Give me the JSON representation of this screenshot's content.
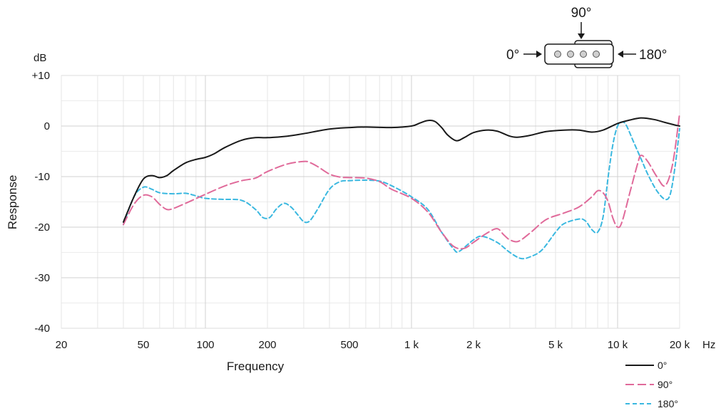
{
  "chart_data": {
    "type": "line",
    "xscale": "log",
    "xlabel": "Frequency",
    "ylabel": "Response",
    "x_unit": "Hz",
    "y_unit": "dB",
    "xlim": [
      20,
      20000
    ],
    "ylim": [
      -40,
      10
    ],
    "x_ticks": [
      {
        "value": 20,
        "label": "20"
      },
      {
        "value": 50,
        "label": "50"
      },
      {
        "value": 100,
        "label": "100"
      },
      {
        "value": 200,
        "label": "200"
      },
      {
        "value": 500,
        "label": "500"
      },
      {
        "value": 1000,
        "label": "1 k"
      },
      {
        "value": 2000,
        "label": "2 k"
      },
      {
        "value": 5000,
        "label": "5 k"
      },
      {
        "value": 10000,
        "label": "10 k"
      },
      {
        "value": 20000,
        "label": "20 k"
      }
    ],
    "y_ticks": [
      {
        "value": 10,
        "label": "+10"
      },
      {
        "value": 0,
        "label": "0"
      },
      {
        "value": -10,
        "label": "-10"
      },
      {
        "value": -20,
        "label": "-20"
      },
      {
        "value": -30,
        "label": "-30"
      },
      {
        "value": -40,
        "label": "-40"
      }
    ],
    "grid": true,
    "legend_position": "bottom-right",
    "series": [
      {
        "name": "0°",
        "color": "#1a1a1a",
        "dash": "solid",
        "points": [
          [
            40,
            -19
          ],
          [
            45,
            -14
          ],
          [
            50,
            -10.5
          ],
          [
            55,
            -9.8
          ],
          [
            60,
            -10.2
          ],
          [
            65,
            -9.8
          ],
          [
            70,
            -8.8
          ],
          [
            80,
            -7.3
          ],
          [
            90,
            -6.6
          ],
          [
            100,
            -6.2
          ],
          [
            110,
            -5.5
          ],
          [
            125,
            -4.2
          ],
          [
            150,
            -2.8
          ],
          [
            175,
            -2.3
          ],
          [
            200,
            -2.3
          ],
          [
            250,
            -2
          ],
          [
            300,
            -1.5
          ],
          [
            400,
            -0.6
          ],
          [
            500,
            -0.3
          ],
          [
            600,
            -0.2
          ],
          [
            800,
            -0.3
          ],
          [
            1000,
            0
          ],
          [
            1100,
            0.6
          ],
          [
            1200,
            1.1
          ],
          [
            1300,
            0.9
          ],
          [
            1400,
            -0.3
          ],
          [
            1500,
            -1.8
          ],
          [
            1650,
            -2.9
          ],
          [
            1800,
            -2.3
          ],
          [
            2000,
            -1.3
          ],
          [
            2300,
            -0.8
          ],
          [
            2600,
            -1
          ],
          [
            3000,
            -2
          ],
          [
            3300,
            -2.2
          ],
          [
            3800,
            -1.8
          ],
          [
            4500,
            -1.1
          ],
          [
            5500,
            -0.8
          ],
          [
            6500,
            -0.8
          ],
          [
            7500,
            -1.2
          ],
          [
            8500,
            -0.8
          ],
          [
            10000,
            0.5
          ],
          [
            11500,
            1.2
          ],
          [
            13000,
            1.6
          ],
          [
            15000,
            1.3
          ],
          [
            17000,
            0.7
          ],
          [
            19000,
            0.2
          ],
          [
            20000,
            0
          ]
        ]
      },
      {
        "name": "90°",
        "color": "#e06a9a",
        "dash": "long-dash",
        "points": [
          [
            40,
            -19.5
          ],
          [
            45,
            -15.5
          ],
          [
            50,
            -13.7
          ],
          [
            55,
            -14
          ],
          [
            60,
            -15.5
          ],
          [
            65,
            -16.5
          ],
          [
            70,
            -16.3
          ],
          [
            80,
            -15.3
          ],
          [
            100,
            -13.5
          ],
          [
            125,
            -11.8
          ],
          [
            150,
            -10.8
          ],
          [
            175,
            -10.3
          ],
          [
            200,
            -9
          ],
          [
            250,
            -7.5
          ],
          [
            300,
            -7
          ],
          [
            320,
            -7.2
          ],
          [
            350,
            -8
          ],
          [
            400,
            -9.5
          ],
          [
            450,
            -10.1
          ],
          [
            500,
            -10.2
          ],
          [
            600,
            -10.3
          ],
          [
            700,
            -11
          ],
          [
            800,
            -12.5
          ],
          [
            1000,
            -14.3
          ],
          [
            1200,
            -17
          ],
          [
            1400,
            -21
          ],
          [
            1600,
            -23.8
          ],
          [
            1800,
            -24.2
          ],
          [
            2000,
            -23
          ],
          [
            2300,
            -21.3
          ],
          [
            2600,
            -20.3
          ],
          [
            2800,
            -21.5
          ],
          [
            3000,
            -22.5
          ],
          [
            3300,
            -22.8
          ],
          [
            3800,
            -21
          ],
          [
            4500,
            -18.5
          ],
          [
            5500,
            -17.2
          ],
          [
            6500,
            -16
          ],
          [
            7500,
            -14
          ],
          [
            8000,
            -12.8
          ],
          [
            8500,
            -13.2
          ],
          [
            9000,
            -15
          ],
          [
            9500,
            -18.3
          ],
          [
            10000,
            -20
          ],
          [
            10500,
            -19
          ],
          [
            11500,
            -13
          ],
          [
            12500,
            -7.5
          ],
          [
            13000,
            -5.8
          ],
          [
            14000,
            -7
          ],
          [
            15500,
            -10
          ],
          [
            17000,
            -11.8
          ],
          [
            18500,
            -7.5
          ],
          [
            20000,
            2.5
          ]
        ]
      },
      {
        "name": "180°",
        "color": "#3ab8e0",
        "dash": "short-dash",
        "points": [
          [
            40,
            -19.5
          ],
          [
            45,
            -14
          ],
          [
            50,
            -12.1
          ],
          [
            55,
            -12.5
          ],
          [
            60,
            -13.2
          ],
          [
            70,
            -13.4
          ],
          [
            80,
            -13.3
          ],
          [
            90,
            -13.8
          ],
          [
            100,
            -14.3
          ],
          [
            120,
            -14.5
          ],
          [
            150,
            -14.7
          ],
          [
            175,
            -16.5
          ],
          [
            190,
            -18.1
          ],
          [
            205,
            -18.1
          ],
          [
            220,
            -16.5
          ],
          [
            240,
            -15.3
          ],
          [
            260,
            -16
          ],
          [
            280,
            -17.5
          ],
          [
            300,
            -18.9
          ],
          [
            320,
            -18.8
          ],
          [
            350,
            -16.5
          ],
          [
            400,
            -12.5
          ],
          [
            450,
            -11
          ],
          [
            500,
            -10.8
          ],
          [
            600,
            -10.7
          ],
          [
            700,
            -10.9
          ],
          [
            800,
            -11.8
          ],
          [
            1000,
            -14
          ],
          [
            1200,
            -16.5
          ],
          [
            1400,
            -21
          ],
          [
            1600,
            -24.3
          ],
          [
            1700,
            -24.8
          ],
          [
            2000,
            -22.5
          ],
          [
            2200,
            -21.8
          ],
          [
            2600,
            -23
          ],
          [
            3000,
            -25
          ],
          [
            3400,
            -26.2
          ],
          [
            3800,
            -25.8
          ],
          [
            4300,
            -24.5
          ],
          [
            5000,
            -21
          ],
          [
            5500,
            -19.3
          ],
          [
            6500,
            -18.4
          ],
          [
            7000,
            -18.8
          ],
          [
            7500,
            -20.5
          ],
          [
            8000,
            -21
          ],
          [
            8500,
            -18
          ],
          [
            9000,
            -10
          ],
          [
            9500,
            -3.5
          ],
          [
            10000,
            0
          ],
          [
            10500,
            0.8
          ],
          [
            11000,
            0.2
          ],
          [
            12000,
            -3.3
          ],
          [
            13000,
            -6.5
          ],
          [
            14000,
            -9.5
          ],
          [
            15500,
            -12.8
          ],
          [
            17000,
            -14.5
          ],
          [
            18000,
            -13.5
          ],
          [
            19000,
            -8
          ],
          [
            20000,
            -0.5
          ]
        ]
      }
    ]
  },
  "diagram": {
    "top_label": "90°",
    "left_label": "0°",
    "right_label": "180°"
  },
  "axis_units": {
    "y": "dB",
    "x": "Hz"
  }
}
